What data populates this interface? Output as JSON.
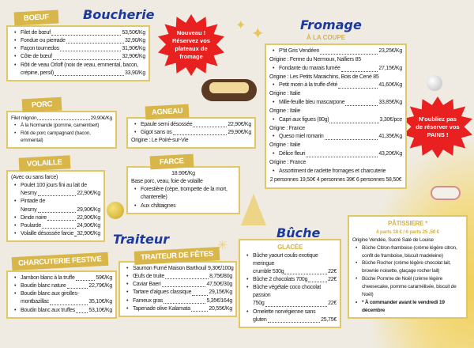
{
  "boucherie": {
    "title": "Boucherie",
    "boeuf": {
      "label": "BOEUF",
      "items": [
        [
          "Filet de bœuf",
          "53,50€/Kg"
        ],
        [
          "Fondue ou pierrade",
          "32,90/Kg"
        ],
        [
          "Façon tournedos",
          "31,90€/Kg"
        ],
        [
          "Côte de bœuf",
          "32,90€/Kg"
        ]
      ],
      "orloff": "Rôti de veau Orloff (noix de veau, emmental, bacon,",
      "orloff2": "crépine, persil)",
      "orloff_price": "33,90/Kg"
    },
    "porc": {
      "label": "PORC",
      "filet": "Filet mignon",
      "filet_price": "29,90€/Kg",
      "items": [
        "À la Normande (pomme, camembert)",
        "Rôti de porc campagnard (bacon, emmental)"
      ]
    },
    "volaille": {
      "label": "VOLAILLE",
      "note": "(Avec ou sans farce)",
      "poulet": "Poulet  100 jours fini au lait de",
      "poulet2": "Nesmy",
      "poulet_price": "22,90€/Kg",
      "pintade": "Pintade de",
      "pintade2": "Nesmy",
      "pintade_price": "29,90€/Kg",
      "items": [
        [
          "Dinde noire",
          "22,90€/Kg"
        ],
        [
          "Poularde",
          "24,90€/Kg"
        ],
        [
          "Volaille désossée farcie",
          "32,90€/Kg"
        ]
      ]
    },
    "agneau": {
      "label": "AGNEAU",
      "items": [
        [
          "Epaule semi désossée",
          "22,90€/Kg"
        ],
        [
          "Gigot sans os",
          "29,90€/Kg"
        ]
      ],
      "origin": "Origine : Le Poiré-sur-Vie"
    },
    "farce": {
      "label": "FARCE",
      "price": "18.90€/Kg",
      "base": "Base porc, veau, foie de volaille",
      "items": [
        "Forestière (cèpe, trompette de la mort, chanterelle)",
        "Aux châtaignes"
      ]
    }
  },
  "charcuterie": {
    "label": "CHARCUTERIE FESTIVE",
    "items": [
      [
        "Jambon blanc à la truffe",
        "59€/Kg"
      ],
      [
        "Boudin blanc nature",
        "22,79€/Kg"
      ]
    ],
    "girolles": "Boudin blanc aux girolles-",
    "girolles2": "montbazillac",
    "girolles_price": "35,10€/Kg",
    "truffes": [
      "Boudin blanc aux truffes",
      "53,10€/Kg"
    ]
  },
  "traiteur": {
    "title": "Traiteur",
    "label": "TRAITEUR DE FÊTES",
    "items": [
      [
        "Saumon Fumé Maison Barthouil",
        "9,30€/100g"
      ],
      [
        "Œufs de truite",
        "8,75€/80g"
      ],
      [
        "Caviar Baeri",
        "47,50€/30g"
      ],
      [
        "Tartare d'algues classique",
        "29,15€/Kg"
      ],
      [
        "Fameux gras",
        "5,35€/164g"
      ],
      [
        "Tapenade olive Kalamata",
        "20,55€/Kg"
      ]
    ]
  },
  "promo1": {
    "line1": "Nouveau !",
    "line2": "Réservez vos",
    "line3": "plateaux de",
    "line4": "fromage"
  },
  "promo2": {
    "line1": "N'oubliez pas",
    "line2": "de réserver vos",
    "line3": "PAINS !"
  },
  "fromage": {
    "title": "Fromage",
    "subtitle": "À LA COUPE",
    "entries": [
      {
        "name": "P'tit Gris Vendéen",
        "price": "23,25€/Kg",
        "origin": "Origine : Ferme du Nermoux, Nalliers 85"
      },
      {
        "name": "Fondante du marais fumée",
        "price": "27,15€/Kg",
        "origin": "Origine : Les Petits Maraichins, Bois de Cené 85"
      },
      {
        "name": "Petit morin à la truffe d'été",
        "price": "41,60€/Kg",
        "origin": "Origine : Italie"
      },
      {
        "name": "Mille-feuille bleu mascarpone",
        "price": "33,85€/Kg",
        "origin": "Origine : Italie"
      },
      {
        "name": "Capri aux figues (80g)",
        "price": "3,30€/pce",
        "origin": "Origne : France"
      },
      {
        "name": "Queso miel romarin",
        "price": "41,35€/Kg",
        "origin": "Origine : Italie"
      },
      {
        "name": "Délice fleuri",
        "price": "43,20€/Kg",
        "origin": "Origine : France"
      }
    ],
    "raclette": "Assortiment de raclette fromages et charcuterie",
    "raclette_prices": "2 personnes 19,50€  4 personnes 39€  6 personnes 58,50€"
  },
  "buche": {
    "title": "Bûche",
    "glacee": "GLACÉE",
    "items": [
      {
        "l1": "Bûche yaourt coulis exotique meringue",
        "l2": "crumble  530g",
        "p": "22€"
      },
      {
        "l1": "",
        "l2": "Bûche 2 chocolats 700g",
        "p": "22€"
      },
      {
        "l1": "Bûche végétale coco chocolat passion",
        "l2": "750g",
        "p": "22€"
      },
      {
        "l1": "Omelette norvégienne sans",
        "l2": "gluten",
        "p": "25,75€"
      }
    ]
  },
  "patissiere": {
    "title": "PÂTISSIERE *",
    "prices": "4 parts 18 € / 6 parts 25 ,50 €",
    "origin": "Origine Vendée, Sucré Salé de Louise",
    "items": [
      "Bûche Citron-framboise (crème légère citron, confit de framboise, biscuit madeleine)",
      "Bûche Rocher (crème légère chocolat lait, brownie noisette, glaçage rocher lait)",
      "Bûche Pomme de Noël (crème légère cheesecake, pomme caramélisée, biscuit de Noël)"
    ],
    "note": "* À commander avant le  vendredi 19 décembre"
  }
}
